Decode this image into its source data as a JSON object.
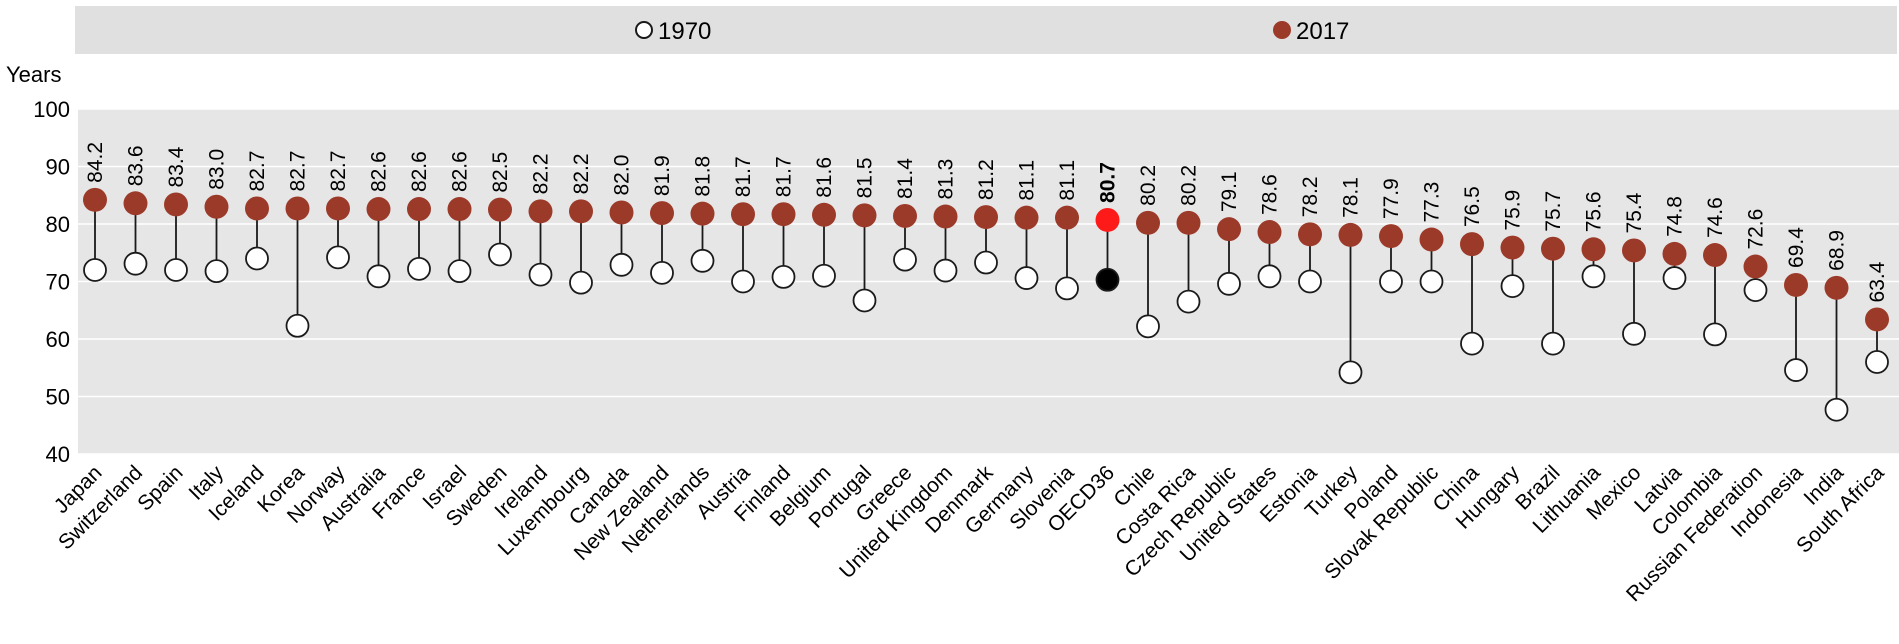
{
  "chart_data": {
    "type": "dot-plot",
    "ylabel": "Years",
    "ylim": [
      40,
      100
    ],
    "yticks": [
      40,
      50,
      60,
      70,
      80,
      90,
      100
    ],
    "grid": true,
    "legend_position": "top",
    "categories": [
      "Japan",
      "Switzerland",
      "Spain",
      "Italy",
      "Iceland",
      "Korea",
      "Norway",
      "Australia",
      "France",
      "Israel",
      "Sweden",
      "Ireland",
      "Luxembourg",
      "Canada",
      "New Zealand",
      "Netherlands",
      "Austria",
      "Finland",
      "Belgium",
      "Portugal",
      "Greece",
      "United Kingdom",
      "Denmark",
      "Germany",
      "Slovenia",
      "OECD36",
      "Chile",
      "Costa Rica",
      "Czech Republic",
      "United States",
      "Estonia",
      "Turkey",
      "Poland",
      "Slovak Republic",
      "China",
      "Hungary",
      "Brazil",
      "Lithuania",
      "Mexico",
      "Latvia",
      "Colombia",
      "Russian Federation",
      "Indonesia",
      "India",
      "South Africa"
    ],
    "series": [
      {
        "name": "1970",
        "values": [
          72.0,
          73.1,
          72.0,
          71.8,
          74.0,
          62.3,
          74.2,
          70.9,
          72.2,
          71.8,
          74.7,
          71.2,
          69.8,
          72.9,
          71.5,
          73.6,
          70.0,
          70.8,
          71.0,
          66.7,
          73.8,
          71.9,
          73.3,
          70.6,
          68.8,
          70.3,
          62.2,
          66.5,
          69.6,
          70.9,
          70.0,
          54.2,
          70.0,
          70.0,
          59.2,
          69.2,
          59.2,
          70.9,
          60.9,
          70.6,
          60.8,
          68.5,
          54.6,
          47.7,
          56.0
        ]
      },
      {
        "name": "2017",
        "values": [
          84.2,
          83.6,
          83.4,
          83.0,
          82.7,
          82.7,
          82.7,
          82.6,
          82.6,
          82.6,
          82.5,
          82.2,
          82.2,
          82.0,
          81.9,
          81.8,
          81.7,
          81.7,
          81.6,
          81.5,
          81.4,
          81.3,
          81.2,
          81.1,
          81.1,
          80.7,
          80.2,
          80.2,
          79.1,
          78.6,
          78.2,
          78.1,
          77.9,
          77.3,
          76.5,
          75.9,
          75.7,
          75.6,
          75.4,
          74.8,
          74.6,
          72.6,
          69.4,
          68.9,
          63.4
        ]
      }
    ],
    "data_labels": [
      "84.2",
      "83.6",
      "83.4",
      "83.0",
      "82.7",
      "82.7",
      "82.7",
      "82.6",
      "82.6",
      "82.6",
      "82.5",
      "82.2",
      "82.2",
      "82.0",
      "81.9",
      "81.8",
      "81.7",
      "81.7",
      "81.6",
      "81.5",
      "81.4",
      "81.3",
      "81.2",
      "81.1",
      "81.1",
      "80.7",
      "80.2",
      "80.2",
      "79.1",
      "78.6",
      "78.2",
      "78.1",
      "77.9",
      "77.3",
      "76.5",
      "75.9",
      "75.7",
      "75.6",
      "75.4",
      "74.8",
      "74.6",
      "72.6",
      "69.4",
      "68.9",
      "63.4"
    ],
    "highlight_category": "OECD36",
    "colors": {
      "dot_2017": "#9c3a2a",
      "dot_1970_fill": "#ffffff",
      "dot_1970_stroke": "#1a1a1a",
      "highlight_2017": "#ff1a1a",
      "highlight_1970": "#000000",
      "plot_background": "#e6e6e6",
      "legend_background": "#e0e0e0",
      "gridline": "#ffffff",
      "connector": "#1a1a1a"
    }
  }
}
